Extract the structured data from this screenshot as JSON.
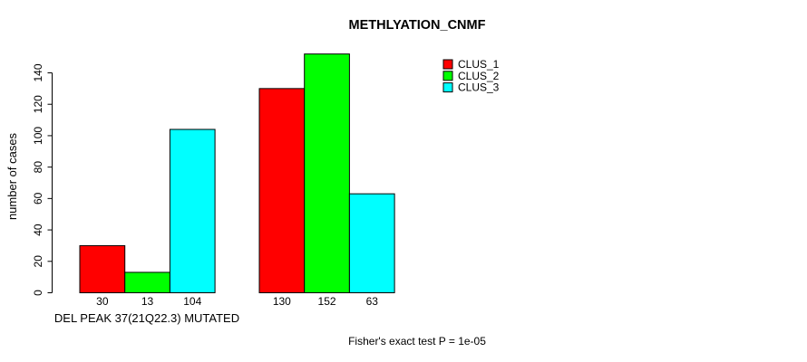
{
  "chart_data": {
    "type": "bar",
    "title": "METHLYATION_CNMF",
    "ylabel": "number of cases",
    "ylim": [
      0,
      140
    ],
    "yticks": [
      0,
      20,
      40,
      60,
      80,
      100,
      120,
      140
    ],
    "grid": false,
    "legend_position": "top-right",
    "series": [
      {
        "name": "CLUS_1",
        "color": "#ff0000",
        "values": [
          30,
          130
        ]
      },
      {
        "name": "CLUS_2",
        "color": "#00ff00",
        "values": [
          13,
          152
        ]
      },
      {
        "name": "CLUS_3",
        "color": "#00ffff",
        "values": [
          104,
          63
        ]
      }
    ],
    "groups": [
      {
        "label": "DEL PEAK 37(21Q22.3) MUTATED"
      },
      {
        "label": ""
      }
    ],
    "bar_value_labels": [
      [
        30,
        13,
        104
      ],
      [
        130,
        152,
        63
      ]
    ],
    "annotation": "Fisher's exact test P = 1e-05",
    "bar_border_color": "#000000",
    "axis_color": "#000000"
  }
}
